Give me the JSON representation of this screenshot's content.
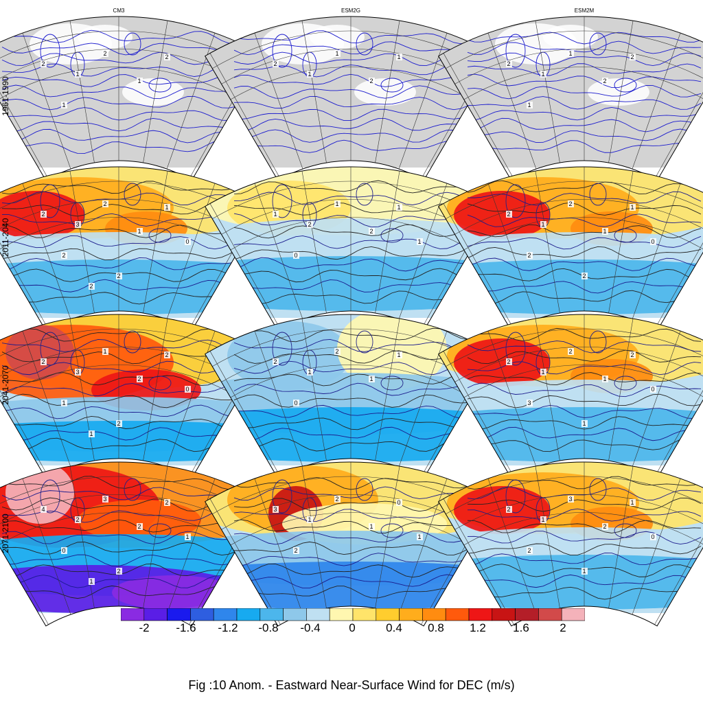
{
  "figure": {
    "caption": "Fig :10  Anom.  - Eastward Near-Surface Wind for DEC (m/s)",
    "models": [
      "CM3",
      "ESM2G",
      "ESM2M"
    ],
    "periods": [
      "1961-1990",
      "2011-2040",
      "2041-2070",
      "2071-2100"
    ],
    "colorbar": {
      "ticks": [
        "-2",
        "-1.6",
        "-1.2",
        "-0.8",
        "-0.4",
        "0",
        "0.4",
        "0.8",
        "1.2",
        "1.6",
        "2"
      ],
      "colors": [
        "#8a2be2",
        "#5a1ee6",
        "#1a1aee",
        "#2e5ee0",
        "#2f86ec",
        "#17aaf0",
        "#4cb6ec",
        "#8ec8ea",
        "#bfe0f2",
        "#fff7b0",
        "#ffe46a",
        "#ffcd2e",
        "#ffad1c",
        "#ff8c10",
        "#ff5a0c",
        "#ee1616",
        "#c81414",
        "#b41e28",
        "#d24a4a",
        "#f4b2ba"
      ]
    },
    "land_color": "#d3d3d3",
    "contour_color": "#1a1acd"
  },
  "panels": [
    {
      "model": "CM3",
      "period": "1961-1990",
      "pattern": "none",
      "labels": [
        "2",
        "1",
        "2",
        "1",
        "2",
        "1"
      ]
    },
    {
      "model": "ESM2G",
      "period": "1961-1990",
      "pattern": "none",
      "labels": [
        "2",
        "1",
        "1",
        "2",
        "1"
      ]
    },
    {
      "model": "ESM2M",
      "period": "1961-1990",
      "pattern": "none",
      "labels": [
        "2",
        "1",
        "1",
        "2",
        "2",
        "1"
      ]
    },
    {
      "model": "CM3",
      "period": "2011-2040",
      "pattern": "warm_strong",
      "labels": [
        "2",
        "3",
        "2",
        "1",
        "1",
        "2",
        "0",
        "2",
        "2"
      ]
    },
    {
      "model": "ESM2G",
      "period": "2011-2040",
      "pattern": "mild",
      "labels": [
        "1",
        "2",
        "1",
        "2",
        "1",
        "0",
        "1"
      ]
    },
    {
      "model": "ESM2M",
      "period": "2011-2040",
      "pattern": "warm_strong",
      "labels": [
        "2",
        "1",
        "2",
        "1",
        "1",
        "2",
        "0",
        "2"
      ]
    },
    {
      "model": "CM3",
      "period": "2041-2070",
      "pattern": "hot",
      "labels": [
        "2",
        "3",
        "1",
        "2",
        "2",
        "1",
        "0",
        "2",
        "1"
      ]
    },
    {
      "model": "ESM2G",
      "period": "2041-2070",
      "pattern": "cool",
      "labels": [
        "2",
        "1",
        "2",
        "1",
        "1",
        "0"
      ]
    },
    {
      "model": "ESM2M",
      "period": "2041-2070",
      "pattern": "warm_strong",
      "labels": [
        "2",
        "1",
        "2",
        "1",
        "2",
        "3",
        "0",
        "1"
      ]
    },
    {
      "model": "CM3",
      "period": "2071-2100",
      "pattern": "extreme",
      "labels": [
        "4",
        "2",
        "3",
        "2",
        "2",
        "0",
        "1",
        "2",
        "1"
      ]
    },
    {
      "model": "ESM2G",
      "period": "2071-2100",
      "pattern": "warm",
      "labels": [
        "3",
        "1",
        "2",
        "1",
        "0",
        "2",
        "1"
      ]
    },
    {
      "model": "ESM2M",
      "period": "2071-2100",
      "pattern": "warm_strong",
      "labels": [
        "2",
        "1",
        "3",
        "2",
        "1",
        "2",
        "0",
        "1"
      ]
    }
  ]
}
